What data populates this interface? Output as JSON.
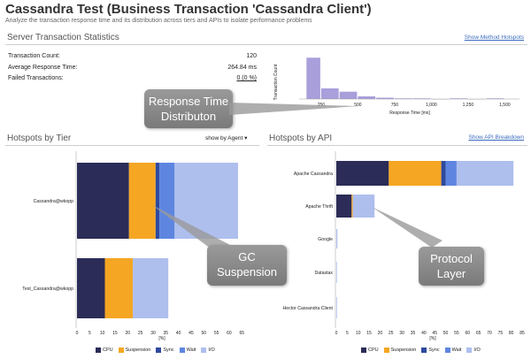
{
  "page": {
    "title": "Cassandra Test (Business Transaction 'Cassandra Client')",
    "subtitle": "Analyze the transaction response time and its distribution across tiers and APIs to isolate performance problems"
  },
  "stats": {
    "section_title": "Server Transaction Statistics",
    "show_method_hotspots": "Show Method Hotspots",
    "rows": [
      {
        "label": "Transaction Count:",
        "value": "120"
      },
      {
        "label": "Average Response Time:",
        "value": "264.84 ms"
      },
      {
        "label": "Failed Transactions:",
        "value": "0 (0 %)"
      }
    ]
  },
  "histogram": {
    "ylabel": "Transaction Count",
    "xlabel": "Response Time [ms]",
    "ticks": [
      "250",
      "500",
      "750",
      "1,000",
      "1,250",
      "1,500"
    ],
    "tick_values": [
      250,
      500,
      750,
      1000,
      1250,
      1500
    ],
    "xlim": [
      100,
      1600
    ],
    "ymax": 65,
    "bins": [
      {
        "x0": 150,
        "x1": 250,
        "count": 62
      },
      {
        "x0": 250,
        "x1": 375,
        "count": 16
      },
      {
        "x0": 375,
        "x1": 500,
        "count": 11
      },
      {
        "x0": 500,
        "x1": 625,
        "count": 4
      },
      {
        "x0": 625,
        "x1": 750,
        "count": 2
      },
      {
        "x0": 750,
        "x1": 875,
        "count": 1
      },
      {
        "x0": 875,
        "x1": 1000,
        "count": 1
      },
      {
        "x0": 1000,
        "x1": 1125,
        "count": 0
      },
      {
        "x0": 1125,
        "x1": 1250,
        "count": 1
      },
      {
        "x0": 1250,
        "x1": 1375,
        "count": 0
      },
      {
        "x0": 1375,
        "x1": 1500,
        "count": 1
      }
    ]
  },
  "tier": {
    "section_title": "Hotspots by Tier",
    "show_by": "show by Agent",
    "xlabel": "[%]",
    "ticks": [
      0,
      5,
      10,
      15,
      20,
      25,
      30,
      35,
      40,
      45,
      50,
      55,
      60,
      65
    ],
    "xmax": 67,
    "rows": [
      {
        "label": "Cassandra@wkopp",
        "segments": [
          20.5,
          10.5,
          1.5,
          6,
          25
        ]
      },
      {
        "label": "Test_Cassandra@wkopp",
        "segments": [
          11,
          11,
          0,
          0,
          14
        ]
      }
    ]
  },
  "api": {
    "section_title": "Hotspots by API",
    "show_breakdown": "Show API Breakdown",
    "xlabel": "[%]",
    "ticks": [
      0,
      5,
      10,
      15,
      20,
      25,
      30,
      35,
      40,
      45,
      50,
      55,
      60,
      65,
      70,
      75,
      80,
      85
    ],
    "xmax": 87,
    "rows": [
      {
        "label": "Apache Cassandra",
        "segments": [
          24,
          24,
          2,
          5,
          26
        ]
      },
      {
        "label": "Apache Thrift",
        "segments": [
          7,
          0.5,
          0,
          0,
          10
        ]
      },
      {
        "label": "Google",
        "segments": [
          0,
          0,
          0,
          0,
          0.5
        ]
      },
      {
        "label": "Datastax",
        "segments": [
          0,
          0,
          0,
          0,
          0.3
        ]
      },
      {
        "label": "Hector Cassandra Client",
        "segments": [
          0,
          0,
          0,
          0,
          0.3
        ]
      }
    ]
  },
  "legend": [
    {
      "name": "CPU",
      "color": "#2b2c57"
    },
    {
      "name": "Suspension",
      "color": "#f5a623"
    },
    {
      "name": "Sync",
      "color": "#2e4a9e"
    },
    {
      "name": "Wait",
      "color": "#5e86e0"
    },
    {
      "name": "I/O",
      "color": "#aebfee"
    }
  ],
  "callouts": {
    "response": "Response Time Distributon",
    "gc": "GC Suspension",
    "protocol": "Protocol Layer"
  },
  "colors": {
    "histogram_bar": "#a89fdb",
    "callout": "#8a8a8a",
    "link": "#3a6bbf"
  }
}
